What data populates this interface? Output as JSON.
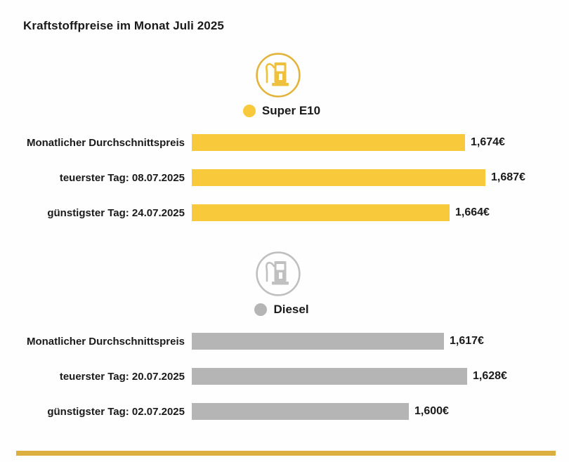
{
  "title": "Kraftstoffpreise im Monat Juli 2025",
  "colors": {
    "super_e10_bar": "#F9C93C",
    "super_e10_ring": "#E2B43C",
    "super_e10_icon": "#EFBF3E",
    "diesel_bar": "#B5B5B5",
    "diesel_ring": "#BFBFBF",
    "diesel_icon": "#C0C0C0",
    "text": "#1A1A1A",
    "footer_stripe": "#DCAE3E",
    "background": "#FEFEFE"
  },
  "chart_data": {
    "type": "bar",
    "orientation": "horizontal",
    "unit": "EUR pro Liter",
    "title": "Kraftstoffpreise im Monat Juli 2025",
    "legend_position": "above-each-group",
    "axes": "none (value labels at bar ends)",
    "groups": [
      {
        "name": "Super E10",
        "color": "#F9C93C",
        "icon": "fuel-pump-icon",
        "rows": [
          {
            "label": "Monatlicher Durchschnittspreis",
            "value": 1.674,
            "value_label": "1,674€"
          },
          {
            "label": "teuerster Tag: 08.07.2025",
            "value": 1.687,
            "value_label": "1,687€"
          },
          {
            "label": "günstigster Tag: 24.07.2025",
            "value": 1.664,
            "value_label": "1,664€"
          }
        ]
      },
      {
        "name": "Diesel",
        "color": "#B5B5B5",
        "icon": "fuel-pump-icon",
        "rows": [
          {
            "label": "Monatlicher Durchschnittspreis",
            "value": 1.617,
            "value_label": "1,617€"
          },
          {
            "label": "teuerster Tag: 20.07.2025",
            "value": 1.628,
            "value_label": "1,628€"
          },
          {
            "label": "günstigster Tag: 02.07.2025",
            "value": 1.6,
            "value_label": "1,600€"
          }
        ]
      }
    ]
  }
}
